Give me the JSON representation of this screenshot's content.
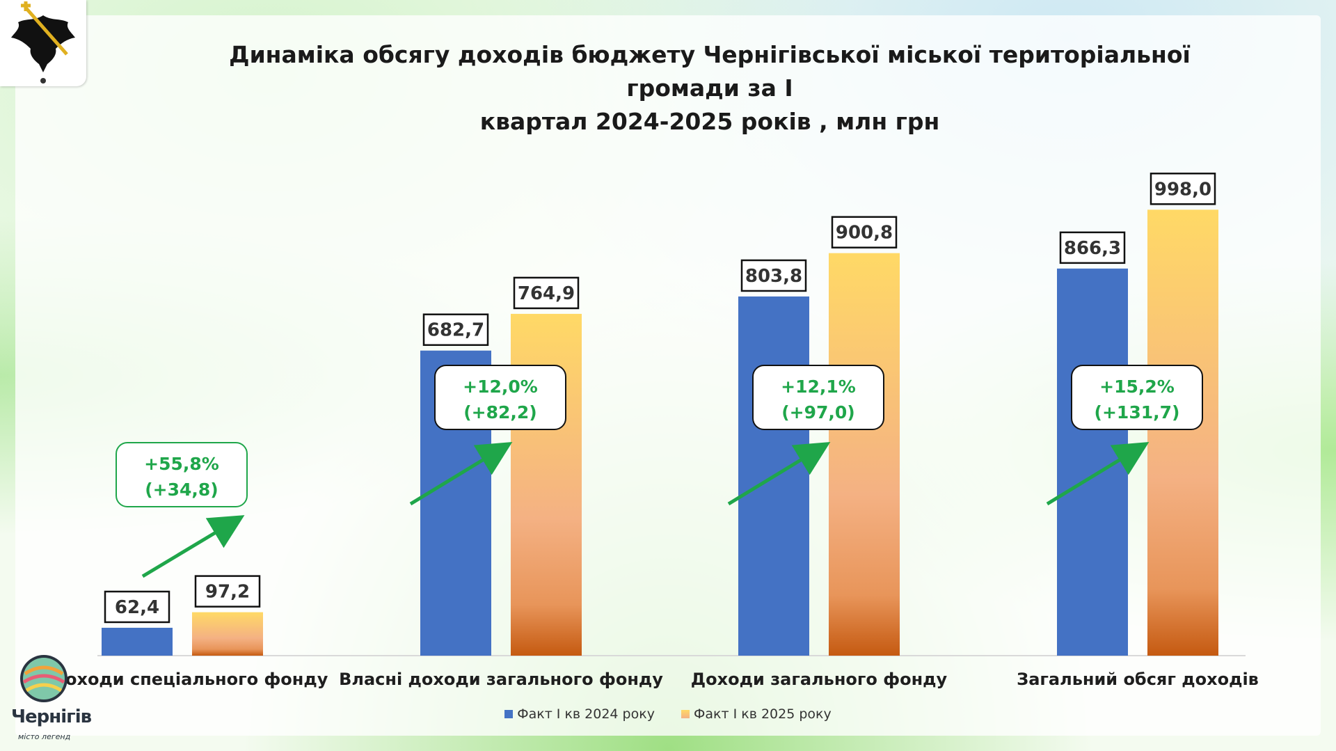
{
  "title_line1": "Динаміка обсягу доходів  бюджету Чернігівської міської територіальної громади за І",
  "title_line2": "квартал 2024-2025 років , млн грн",
  "logo": {
    "name": "Чернігів",
    "tagline": "місто легенд"
  },
  "colors": {
    "series_2024": "#4472C4",
    "series_2025_top": "#FFD966",
    "series_2025_bottom": "#C55A11",
    "growth": "#1FA64A"
  },
  "chart_data": {
    "type": "bar",
    "title": "Динаміка обсягу доходів  бюджету Чернігівської міської територіальної громади за І квартал 2024-2025 років , млн грн",
    "categories": [
      "Доходи спеціального фонду",
      "Власні доходи загального фонду",
      "Доходи загального фонду",
      "Загальний обсяг доходів"
    ],
    "series": [
      {
        "name": "Факт І кв 2024 року",
        "values": [
          62.4,
          682.7,
          803.8,
          866.3
        ],
        "labels": [
          "62,4",
          "682,7",
          "803,8",
          "866,3"
        ]
      },
      {
        "name": "Факт І кв 2025 року",
        "values": [
          97.2,
          764.9,
          900.8,
          998.0
        ],
        "labels": [
          "97,2",
          "764,9",
          "900,8",
          "998,0"
        ]
      }
    ],
    "growth": [
      {
        "percent": "+55,8%",
        "delta": "(+34,8)"
      },
      {
        "percent": "+12,0%",
        "delta": "(+82,2)"
      },
      {
        "percent": "+12,1%",
        "delta": "(+97,0)"
      },
      {
        "percent": "+15,2%",
        "delta": "(+131,7)"
      }
    ],
    "ylim": [
      0,
      1000
    ],
    "legend_position": "bottom",
    "grid": false
  }
}
